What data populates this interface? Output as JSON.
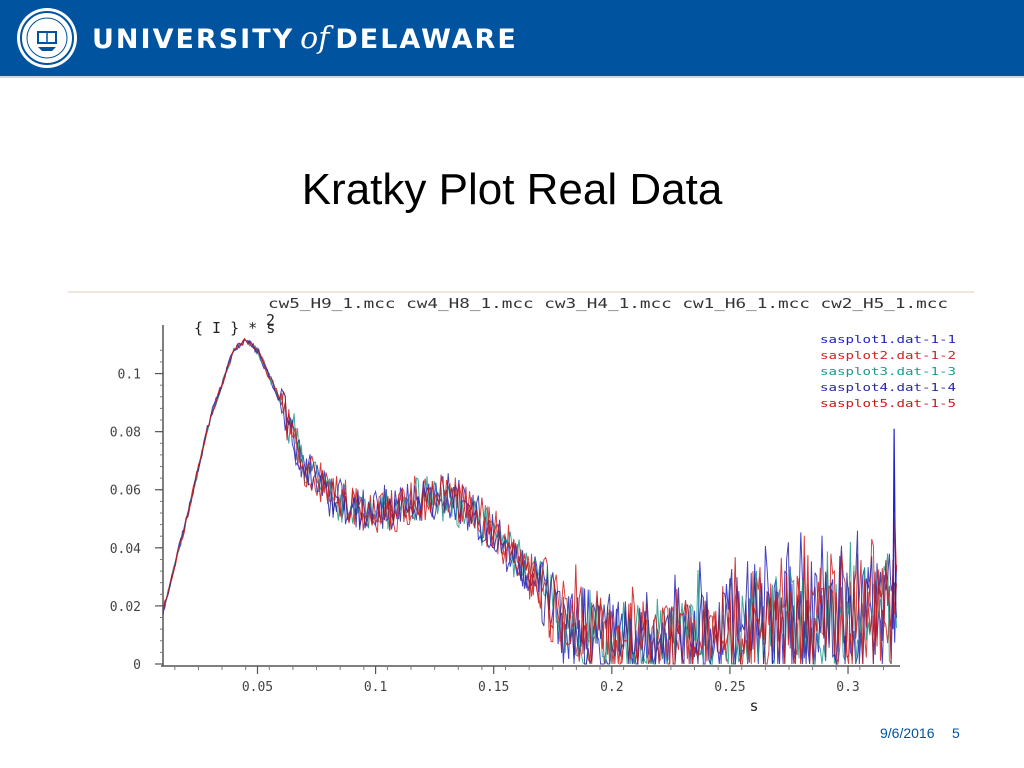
{
  "header": {
    "wordmark_left": "UNIVERSITY",
    "wordmark_of": "of",
    "wordmark_right": "DELAWARE",
    "brand_color": "#00539f",
    "logo_icon": "university-seal-icon"
  },
  "slide": {
    "title": "Kratky Plot Real Data",
    "date": "9/6/2016",
    "page": "5"
  },
  "chart_data": {
    "type": "line",
    "title": "cw5_H9_1.mcc cw4_H8_1.mcc cw3_H4_1.mcc cw1_H6_1.mcc cw2_H5_1.mcc",
    "ylabel_base": "{ I } * s",
    "ylabel_exp": "2",
    "xlabel": "s",
    "xlim": [
      0.01,
      0.322
    ],
    "ylim": [
      0,
      0.115
    ],
    "x_ticks": [
      0.05,
      0.1,
      0.15,
      0.2,
      0.25,
      0.3
    ],
    "y_ticks": [
      0,
      0.02,
      0.04,
      0.06,
      0.08,
      0.1
    ],
    "x_tick_labels": [
      "0.05",
      "0.1",
      "0.15",
      "0.2",
      "0.25",
      "0.3"
    ],
    "y_tick_labels": [
      "0",
      "0.02",
      "0.04",
      "0.06",
      "0.08",
      "0.1"
    ],
    "grid": false,
    "legend_position": "top-right",
    "curve": {
      "x": [
        0.01,
        0.02,
        0.03,
        0.04,
        0.045,
        0.05,
        0.06,
        0.07,
        0.08,
        0.09,
        0.1,
        0.11,
        0.12,
        0.13,
        0.14,
        0.15,
        0.16,
        0.17,
        0.18,
        0.2,
        0.22,
        0.24,
        0.26,
        0.28,
        0.3,
        0.32
      ],
      "y": [
        0.018,
        0.05,
        0.085,
        0.108,
        0.112,
        0.108,
        0.09,
        0.068,
        0.058,
        0.054,
        0.052,
        0.054,
        0.057,
        0.058,
        0.053,
        0.046,
        0.036,
        0.027,
        0.014,
        0.008,
        0.009,
        0.011,
        0.013,
        0.015,
        0.017,
        0.018
      ]
    },
    "series": [
      {
        "name": "sasplot1.dat-1-1",
        "color": "#2020c8"
      },
      {
        "name": "sasplot2.dat-1-2",
        "color": "#d42020"
      },
      {
        "name": "sasplot3.dat-1-3",
        "color": "#1a9a8a"
      },
      {
        "name": "sasplot4.dat-1-4",
        "color": "#28289a"
      },
      {
        "name": "sasplot5.dat-1-5",
        "color": "#c81818"
      }
    ]
  }
}
